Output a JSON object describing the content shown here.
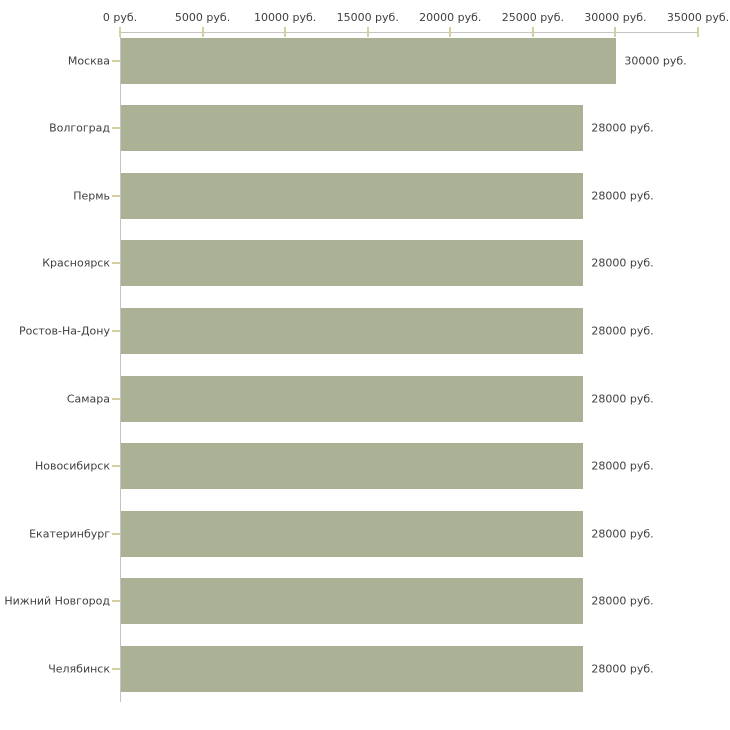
{
  "chart_data": {
    "type": "bar",
    "orientation": "horizontal",
    "title": "",
    "xlabel": "",
    "ylabel": "",
    "unit": "руб.",
    "categories": [
      "Москва",
      "Волгоград",
      "Пермь",
      "Красноярск",
      "Ростов-На-Дону",
      "Самара",
      "Новосибирск",
      "Екатеринбург",
      "Нижний Новгород",
      "Челябинск"
    ],
    "values": [
      30000,
      28000,
      28000,
      28000,
      28000,
      28000,
      28000,
      28000,
      28000,
      28000
    ],
    "value_labels": [
      "30000 руб.",
      "28000 руб.",
      "28000 руб.",
      "28000 руб.",
      "28000 руб.",
      "28000 руб.",
      "28000 руб.",
      "28000 руб.",
      "28000 руб.",
      "28000 руб."
    ],
    "xlim": [
      0,
      35000
    ],
    "x_ticks": [
      0,
      5000,
      10000,
      15000,
      20000,
      25000,
      30000,
      35000
    ],
    "x_tick_labels": [
      "0 руб.",
      "5000 руб.",
      "10000 руб.",
      "15000 руб.",
      "20000 руб.",
      "25000 руб.",
      "30000 руб.",
      "35000 руб."
    ],
    "grid": false,
    "legend": "none"
  },
  "colors": {
    "bar_fill": "#abb194",
    "axis_line": "#c3c3c3",
    "tick_mark": "#d6d0a0",
    "text": "#3f3f3f",
    "background": "#ffffff"
  }
}
